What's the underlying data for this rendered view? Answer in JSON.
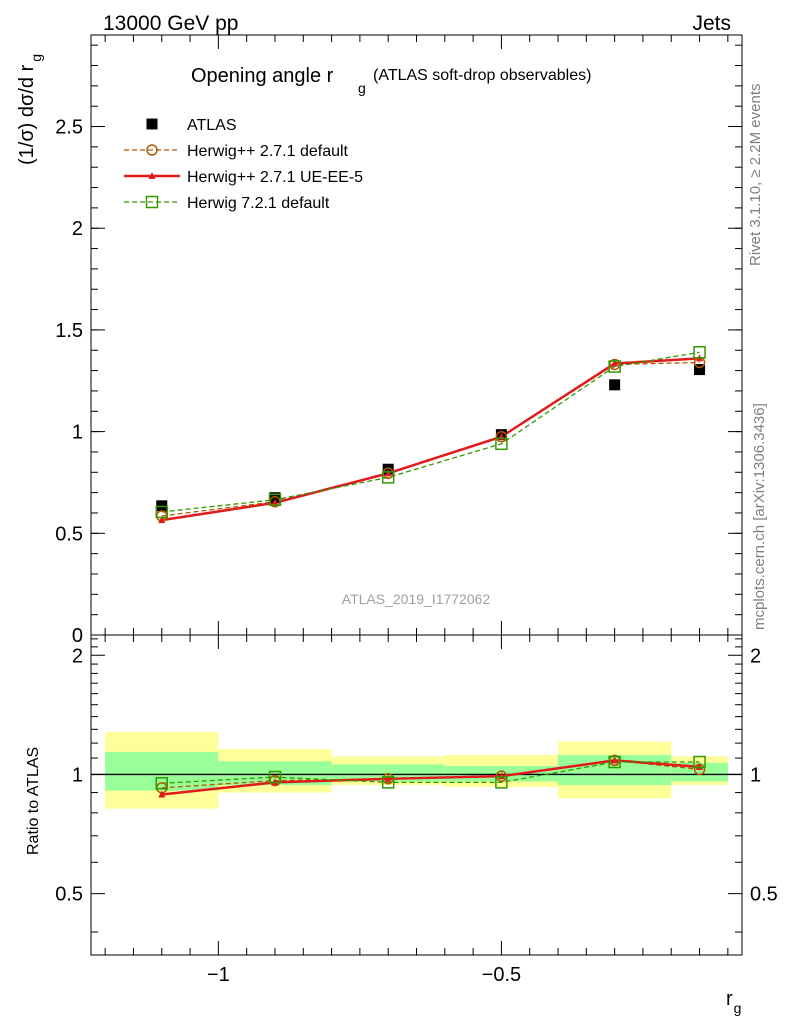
{
  "header": {
    "left": "13000 GeV pp",
    "right": "Jets"
  },
  "side": {
    "rivet": "Rivet 3.1.10, ≥ 2.2M events",
    "mcplots": "mcplots.cern.ch [arXiv:1306.3436]"
  },
  "chart_data": [
    {
      "type": "scatter",
      "panel": "main",
      "title_main": "Opening angle r",
      "title_sub": "g",
      "title_rest": "(ATLAS soft-drop observables)",
      "ylabel": "(1/σ) dσ/d r",
      "ylabel_sub": "g",
      "watermark": "ATLAS_2019_I1772062",
      "xlim": [
        -1.225,
        -0.075
      ],
      "ylim": [
        0,
        2.95
      ],
      "yscale": "linear",
      "y_ticks": [
        {
          "v": 0,
          "label": "0"
        },
        {
          "v": 0.5,
          "label": "0.5"
        },
        {
          "v": 1,
          "label": "1"
        },
        {
          "v": 1.5,
          "label": "1.5"
        },
        {
          "v": 2,
          "label": "2"
        },
        {
          "v": 2.5,
          "label": "2.5"
        }
      ],
      "legend_position": "top-left",
      "x": [
        -1.1,
        -0.9,
        -0.7,
        -0.5,
        -0.3,
        -0.15
      ],
      "series": [
        {
          "name": "ATLAS",
          "style": "data",
          "color": "#000000",
          "values": [
            0.635,
            0.675,
            0.815,
            0.985,
            1.23,
            1.305
          ]
        },
        {
          "name": "Herwig++ 2.7.1 default",
          "style": "circle-dashed",
          "color": "#b35900",
          "values": [
            0.585,
            0.655,
            0.795,
            0.975,
            1.33,
            1.34
          ]
        },
        {
          "name": "Herwig++ 2.7.1 UE-EE-5",
          "style": "triangle-solid",
          "color": "#e31a1c",
          "values": [
            0.565,
            0.65,
            0.795,
            0.975,
            1.335,
            1.36
          ]
        },
        {
          "name": "Herwig 7.2.1 default",
          "style": "square-dashed",
          "color": "#339900",
          "values": [
            0.605,
            0.665,
            0.775,
            0.94,
            1.32,
            1.39
          ]
        }
      ]
    },
    {
      "type": "scatter",
      "panel": "ratio",
      "ylabel": "Ratio to ATLAS",
      "xlabel": "r",
      "xlabel_sub": "g",
      "xlim": [
        -1.225,
        -0.075
      ],
      "ylim": [
        0.35,
        2.25
      ],
      "yscale": "log",
      "x_ticks": [
        {
          "v": -1,
          "label": "−1"
        },
        {
          "v": -0.5,
          "label": "−0.5"
        }
      ],
      "y_ticks": [
        {
          "v": 0.5,
          "label": "0.5"
        },
        {
          "v": 1,
          "label": "1"
        },
        {
          "v": 2,
          "label": "2"
        }
      ],
      "bins": [
        {
          "lo": -1.2,
          "hi": -1.0,
          "band_inner": [
            0.91,
            1.14
          ],
          "band_outer": [
            0.82,
            1.28
          ]
        },
        {
          "lo": -1.0,
          "hi": -0.8,
          "band_inner": [
            0.94,
            1.08
          ],
          "band_outer": [
            0.9,
            1.16
          ]
        },
        {
          "lo": -0.8,
          "hi": -0.6,
          "band_inner": [
            0.96,
            1.06
          ],
          "band_outer": [
            0.94,
            1.11
          ]
        },
        {
          "lo": -0.6,
          "hi": -0.4,
          "band_inner": [
            0.96,
            1.05
          ],
          "band_outer": [
            0.93,
            1.12
          ]
        },
        {
          "lo": -0.4,
          "hi": -0.2,
          "band_inner": [
            0.94,
            1.12
          ],
          "band_outer": [
            0.87,
            1.21
          ]
        },
        {
          "lo": -0.2,
          "hi": -0.1,
          "band_inner": [
            0.96,
            1.07
          ],
          "band_outer": [
            0.94,
            1.11
          ]
        }
      ],
      "x": [
        -1.1,
        -0.9,
        -0.7,
        -0.5,
        -0.3,
        -0.15
      ],
      "series": [
        {
          "name": "Herwig++ 2.7.1 default",
          "style": "circle-dashed",
          "color": "#b35900",
          "values": [
            0.925,
            0.965,
            0.975,
            0.99,
            1.085,
            1.03
          ]
        },
        {
          "name": "Herwig++ 2.7.1 UE-EE-5",
          "style": "triangle-solid",
          "color": "#e31a1c",
          "values": [
            0.89,
            0.955,
            0.975,
            0.99,
            1.085,
            1.045
          ]
        },
        {
          "name": "Herwig 7.2.1 default",
          "style": "square-dashed",
          "color": "#339900",
          "values": [
            0.95,
            0.985,
            0.955,
            0.955,
            1.075,
            1.075
          ]
        }
      ]
    }
  ]
}
